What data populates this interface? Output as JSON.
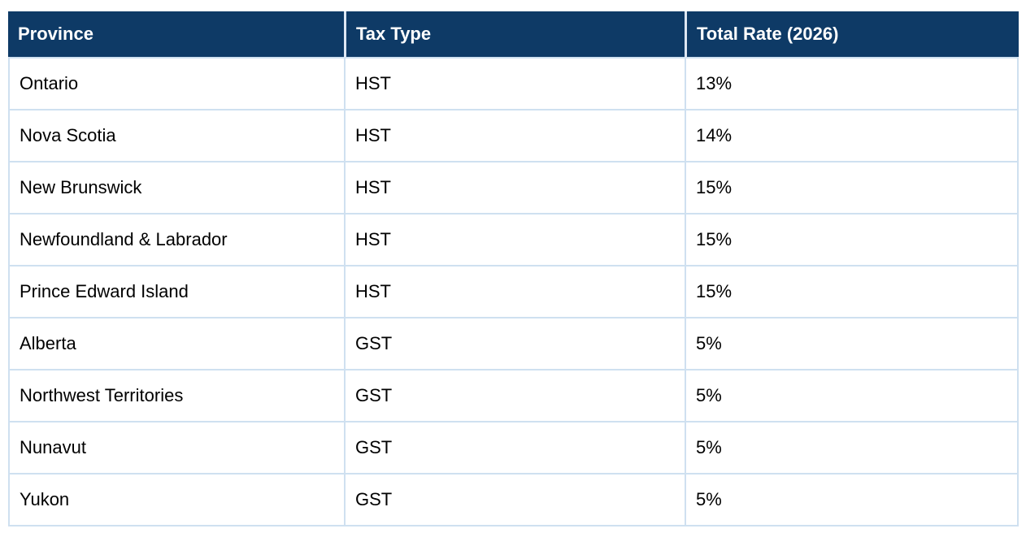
{
  "table": {
    "columns": [
      "Province",
      "Tax Type",
      "Total Rate (2026)"
    ],
    "rows": [
      {
        "province": "Ontario",
        "tax_type": "HST",
        "total_rate": "13%"
      },
      {
        "province": "Nova Scotia",
        "tax_type": "HST",
        "total_rate": "14%"
      },
      {
        "province": "New Brunswick",
        "tax_type": "HST",
        "total_rate": "15%"
      },
      {
        "province": "Newfoundland & Labrador",
        "tax_type": "HST",
        "total_rate": "15%"
      },
      {
        "province": "Prince Edward Island",
        "tax_type": "HST",
        "total_rate": "15%"
      },
      {
        "province": "Alberta",
        "tax_type": "GST",
        "total_rate": "5%"
      },
      {
        "province": "Northwest Territories",
        "tax_type": "GST",
        "total_rate": "5%"
      },
      {
        "province": "Nunavut",
        "tax_type": "GST",
        "total_rate": "5%"
      },
      {
        "province": "Yukon",
        "tax_type": "GST",
        "total_rate": "5%"
      }
    ]
  },
  "chart_data": {
    "type": "table",
    "title": "",
    "columns": [
      "Province",
      "Tax Type",
      "Total Rate (2026)"
    ],
    "rows": [
      [
        "Ontario",
        "HST",
        "13%"
      ],
      [
        "Nova Scotia",
        "HST",
        "14%"
      ],
      [
        "New Brunswick",
        "HST",
        "15%"
      ],
      [
        "Newfoundland & Labrador",
        "HST",
        "15%"
      ],
      [
        "Prince Edward Island",
        "HST",
        "15%"
      ],
      [
        "Alberta",
        "GST",
        "5%"
      ],
      [
        "Northwest Territories",
        "GST",
        "5%"
      ],
      [
        "Nunavut",
        "GST",
        "5%"
      ],
      [
        "Yukon",
        "GST",
        "5%"
      ]
    ]
  },
  "colors": {
    "header_bg": "#0e3a66",
    "header_text": "#ffffff",
    "body_border": "#cfe0f0",
    "header_divider": "#dde7f3",
    "body_text": "#000000",
    "page_bg": "#ffffff"
  }
}
